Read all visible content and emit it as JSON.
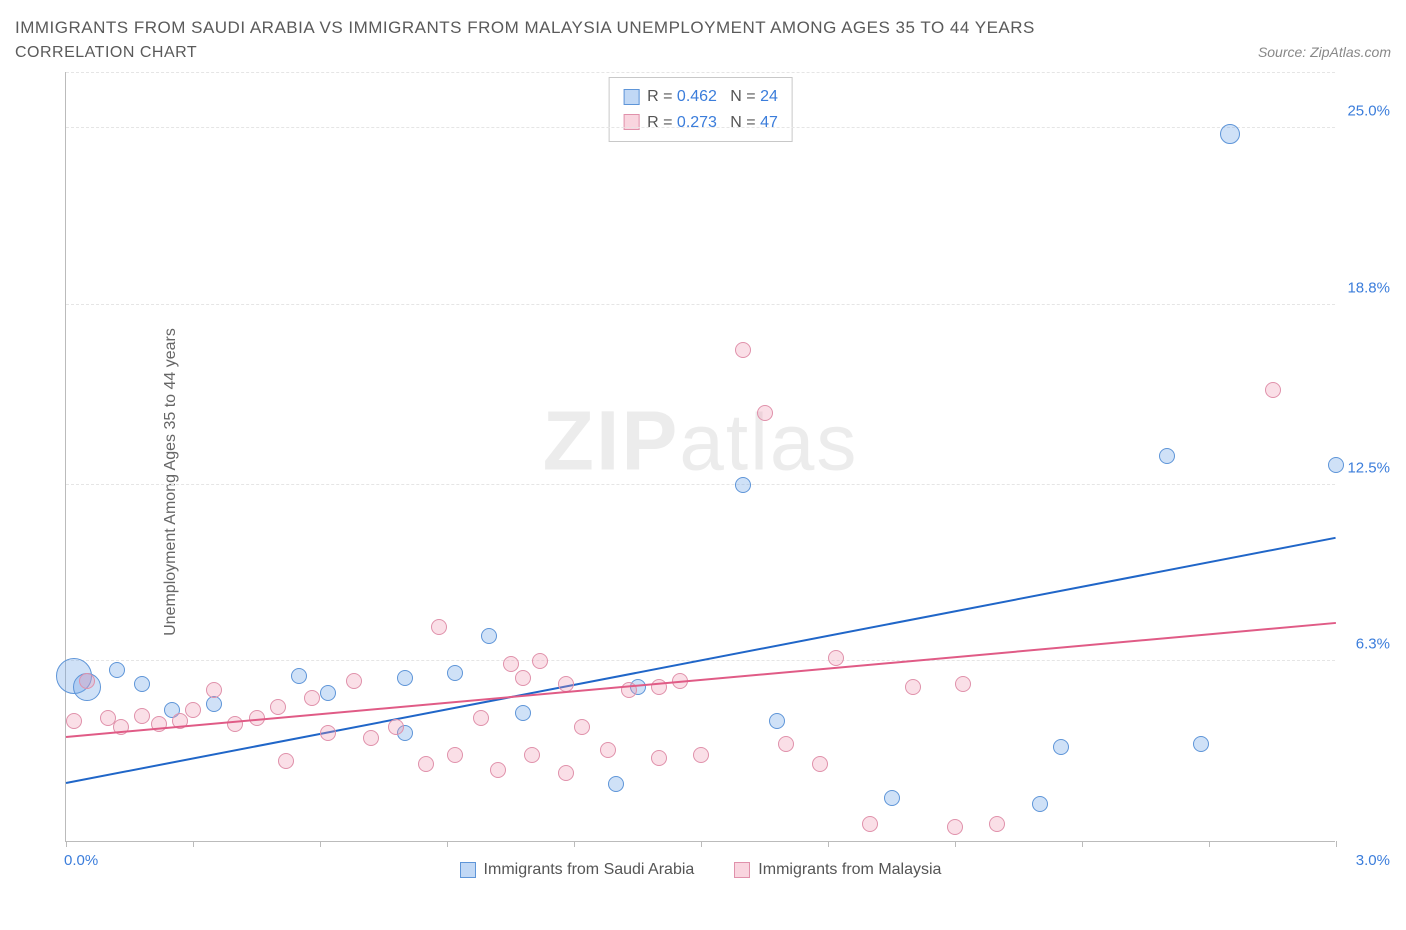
{
  "title": "IMMIGRANTS FROM SAUDI ARABIA VS IMMIGRANTS FROM MALAYSIA UNEMPLOYMENT AMONG AGES 35 TO 44 YEARS",
  "subtitle": "CORRELATION CHART",
  "source": "Source: ZipAtlas.com",
  "y_axis_label": "Unemployment Among Ages 35 to 44 years",
  "watermark_bold": "ZIP",
  "watermark_rest": "atlas",
  "chart": {
    "type": "scatter",
    "background_color": "#ffffff",
    "grid_color": "#e5e5e5",
    "axis_color": "#bbbbbb",
    "text_color": "#5a5a5a",
    "tick_label_color": "#3b7ddb",
    "xlim": [
      0.0,
      3.0
    ],
    "ylim": [
      0.0,
      27.0
    ],
    "x_ticks": [
      0.0,
      0.3,
      0.6,
      0.9,
      1.2,
      1.5,
      1.8,
      2.1,
      2.4,
      2.7,
      3.0
    ],
    "y_ticks": [
      {
        "v": 6.3,
        "label": "6.3%"
      },
      {
        "v": 12.5,
        "label": "12.5%"
      },
      {
        "v": 18.8,
        "label": "18.8%"
      },
      {
        "v": 25.0,
        "label": "25.0%"
      }
    ],
    "x_left_label": "0.0%",
    "x_right_label": "3.0%",
    "series": [
      {
        "name": "Immigrants from Saudi Arabia",
        "color_fill": "rgba(117,169,232,0.35)",
        "color_stroke": "#5e95d8",
        "trend_color": "#2066c8",
        "R": "0.462",
        "N": "24",
        "trend": {
          "x1": 0.0,
          "y1": 2.0,
          "x2": 3.0,
          "y2": 10.6
        },
        "marker_radius": 8,
        "points": [
          {
            "x": 0.02,
            "y": 5.8,
            "r": 18
          },
          {
            "x": 0.05,
            "y": 5.4,
            "r": 14
          },
          {
            "x": 0.12,
            "y": 6.0
          },
          {
            "x": 0.18,
            "y": 5.5
          },
          {
            "x": 0.25,
            "y": 4.6
          },
          {
            "x": 0.35,
            "y": 4.8
          },
          {
            "x": 0.55,
            "y": 5.8
          },
          {
            "x": 0.62,
            "y": 5.2
          },
          {
            "x": 0.8,
            "y": 3.8
          },
          {
            "x": 0.8,
            "y": 5.7
          },
          {
            "x": 0.92,
            "y": 5.9
          },
          {
            "x": 1.0,
            "y": 7.2
          },
          {
            "x": 1.08,
            "y": 4.5
          },
          {
            "x": 1.3,
            "y": 2.0
          },
          {
            "x": 1.35,
            "y": 5.4
          },
          {
            "x": 1.6,
            "y": 12.5
          },
          {
            "x": 1.68,
            "y": 4.2
          },
          {
            "x": 1.95,
            "y": 1.5
          },
          {
            "x": 2.3,
            "y": 1.3
          },
          {
            "x": 2.35,
            "y": 3.3
          },
          {
            "x": 2.6,
            "y": 13.5
          },
          {
            "x": 2.68,
            "y": 3.4
          },
          {
            "x": 2.75,
            "y": 24.8,
            "r": 10
          },
          {
            "x": 3.0,
            "y": 13.2
          }
        ]
      },
      {
        "name": "Immigrants from Malaysia",
        "color_fill": "rgba(240,150,175,0.30)",
        "color_stroke": "#e091ab",
        "trend_color": "#e05b86",
        "R": "0.273",
        "N": "47",
        "trend": {
          "x1": 0.0,
          "y1": 3.6,
          "x2": 3.0,
          "y2": 7.6
        },
        "marker_radius": 8,
        "points": [
          {
            "x": 0.02,
            "y": 4.2
          },
          {
            "x": 0.05,
            "y": 5.6
          },
          {
            "x": 0.1,
            "y": 4.3
          },
          {
            "x": 0.13,
            "y": 4.0
          },
          {
            "x": 0.18,
            "y": 4.4
          },
          {
            "x": 0.22,
            "y": 4.1
          },
          {
            "x": 0.27,
            "y": 4.2
          },
          {
            "x": 0.3,
            "y": 4.6
          },
          {
            "x": 0.35,
            "y": 5.3
          },
          {
            "x": 0.4,
            "y": 4.1
          },
          {
            "x": 0.45,
            "y": 4.3
          },
          {
            "x": 0.5,
            "y": 4.7
          },
          {
            "x": 0.52,
            "y": 2.8
          },
          {
            "x": 0.58,
            "y": 5.0
          },
          {
            "x": 0.62,
            "y": 3.8
          },
          {
            "x": 0.68,
            "y": 5.6
          },
          {
            "x": 0.72,
            "y": 3.6
          },
          {
            "x": 0.78,
            "y": 4.0
          },
          {
            "x": 0.85,
            "y": 2.7
          },
          {
            "x": 0.88,
            "y": 7.5
          },
          {
            "x": 0.92,
            "y": 3.0
          },
          {
            "x": 0.98,
            "y": 4.3
          },
          {
            "x": 1.02,
            "y": 2.5
          },
          {
            "x": 1.05,
            "y": 6.2
          },
          {
            "x": 1.08,
            "y": 5.7
          },
          {
            "x": 1.1,
            "y": 3.0
          },
          {
            "x": 1.12,
            "y": 6.3
          },
          {
            "x": 1.18,
            "y": 2.4
          },
          {
            "x": 1.18,
            "y": 5.5
          },
          {
            "x": 1.22,
            "y": 4.0
          },
          {
            "x": 1.28,
            "y": 3.2
          },
          {
            "x": 1.33,
            "y": 5.3
          },
          {
            "x": 1.4,
            "y": 2.9
          },
          {
            "x": 1.4,
            "y": 5.4
          },
          {
            "x": 1.45,
            "y": 5.6
          },
          {
            "x": 1.5,
            "y": 3.0
          },
          {
            "x": 1.6,
            "y": 17.2
          },
          {
            "x": 1.65,
            "y": 15.0
          },
          {
            "x": 1.7,
            "y": 3.4
          },
          {
            "x": 1.78,
            "y": 2.7
          },
          {
            "x": 1.82,
            "y": 6.4
          },
          {
            "x": 1.9,
            "y": 0.6
          },
          {
            "x": 2.0,
            "y": 5.4
          },
          {
            "x": 2.1,
            "y": 0.5
          },
          {
            "x": 2.12,
            "y": 5.5
          },
          {
            "x": 2.2,
            "y": 0.6
          },
          {
            "x": 2.85,
            "y": 15.8
          }
        ]
      }
    ],
    "legend_bottom": [
      {
        "swatch": "blue",
        "text": "Immigrants from Saudi Arabia"
      },
      {
        "swatch": "pink",
        "text": "Immigrants from Malaysia"
      }
    ]
  }
}
